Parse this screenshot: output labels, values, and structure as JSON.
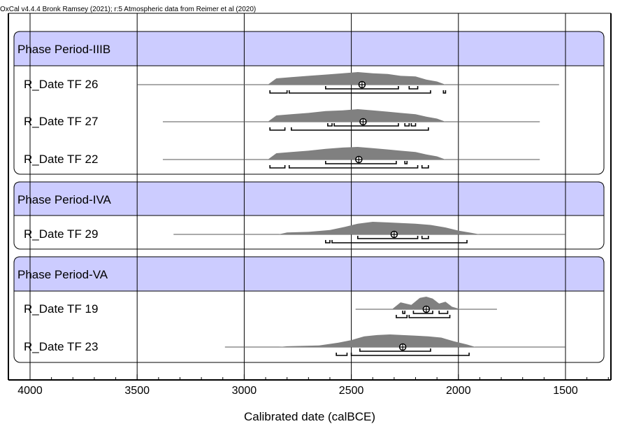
{
  "header": "OxCal v4.4.4 Bronk Ramsey (2021); r:5 Atmospheric data from Reimer et al (2020)",
  "chart_data": {
    "type": "radiocarbon-calibration-plot",
    "title": "",
    "xlabel": "Calibrated date (calBCE)",
    "xlim": [
      4100,
      1300
    ],
    "x_reversed": true,
    "x_ticks": [
      4000,
      3500,
      3000,
      2500,
      2000,
      1500
    ],
    "grid": true,
    "colors": {
      "phase_header": "#ccccff",
      "distribution": "#808080",
      "frame": "#000000",
      "grid": "#000000"
    },
    "phases": [
      {
        "name": "Phase Period-IIIB",
        "dates": [
          {
            "label": "R_Date TF 26",
            "tail": [
              3500,
              1530
            ],
            "marker": 2450,
            "range_68": [
              [
                2620,
                2280
              ],
              [
                2230,
                2190
              ]
            ],
            "range_95": [
              [
                2880,
                2800
              ],
              [
                2790,
                2130
              ],
              [
                2070,
                2060
              ]
            ],
            "peaks": [
              [
                2850,
                0.5
              ],
              [
                2780,
                0.6
              ],
              [
                2700,
                0.7
              ],
              [
                2620,
                0.8
              ],
              [
                2540,
                0.9
              ],
              [
                2470,
                1.0
              ],
              [
                2400,
                0.9
              ],
              [
                2330,
                0.85
              ],
              [
                2270,
                0.7
              ],
              [
                2200,
                0.65
              ],
              [
                2150,
                0.4
              ],
              [
                2100,
                0.25
              ]
            ]
          },
          {
            "label": "R_Date TF 27",
            "tail": [
              3380,
              1620
            ],
            "marker": 2445,
            "range_68": [
              [
                2610,
                2590
              ],
              [
                2580,
                2280
              ],
              [
                2250,
                2230
              ],
              [
                2220,
                2200
              ]
            ],
            "range_95": [
              [
                2880,
                2810
              ],
              [
                2780,
                2140
              ]
            ],
            "peaks": [
              [
                2850,
                0.5
              ],
              [
                2780,
                0.6
              ],
              [
                2700,
                0.7
              ],
              [
                2620,
                0.85
              ],
              [
                2540,
                0.9
              ],
              [
                2470,
                1.0
              ],
              [
                2400,
                0.9
              ],
              [
                2330,
                0.8
              ],
              [
                2270,
                0.7
              ],
              [
                2200,
                0.6
              ],
              [
                2150,
                0.4
              ],
              [
                2100,
                0.25
              ]
            ]
          },
          {
            "label": "R_Date TF 22",
            "tail": [
              3380,
              1620
            ],
            "marker": 2465,
            "range_68": [
              [
                2620,
                2290
              ],
              [
                2250,
                2240
              ]
            ],
            "range_95": [
              [
                2880,
                2810
              ],
              [
                2790,
                2190
              ],
              [
                2170,
                2140
              ]
            ],
            "peaks": [
              [
                2850,
                0.5
              ],
              [
                2780,
                0.6
              ],
              [
                2700,
                0.7
              ],
              [
                2620,
                0.85
              ],
              [
                2540,
                0.95
              ],
              [
                2470,
                1.0
              ],
              [
                2400,
                0.9
              ],
              [
                2330,
                0.8
              ],
              [
                2270,
                0.7
              ],
              [
                2200,
                0.6
              ],
              [
                2150,
                0.4
              ],
              [
                2100,
                0.25
              ]
            ]
          }
        ]
      },
      {
        "name": "Phase Period-IVA",
        "dates": [
          {
            "label": "R_Date TF 29",
            "tail": [
              3330,
              1500
            ],
            "marker": 2300,
            "range_68": [
              [
                2470,
                2190
              ],
              [
                2170,
                2140
              ]
            ],
            "range_95": [
              [
                2620,
                2600
              ],
              [
                2590,
                1960
              ]
            ],
            "peaks": [
              [
                2800,
                0.15
              ],
              [
                2700,
                0.2
              ],
              [
                2600,
                0.35
              ],
              [
                2530,
                0.6
              ],
              [
                2470,
                0.85
              ],
              [
                2400,
                1.0
              ],
              [
                2330,
                0.95
              ],
              [
                2270,
                0.9
              ],
              [
                2200,
                0.85
              ],
              [
                2130,
                0.75
              ],
              [
                2060,
                0.55
              ],
              [
                2000,
                0.3
              ],
              [
                1940,
                0.12
              ]
            ]
          }
        ]
      },
      {
        "name": "Phase Period-VA",
        "dates": [
          {
            "label": "R_Date TF 19",
            "tail": [
              2480,
              1820
            ],
            "marker": 2150,
            "range_68": [
              [
                2260,
                2250
              ],
              [
                2210,
                2120
              ],
              [
                2090,
                2050
              ]
            ],
            "range_95": [
              [
                2290,
                2240
              ],
              [
                2230,
                2040
              ]
            ],
            "peaks": [
              [
                2270,
                0.55
              ],
              [
                2220,
                0.35
              ],
              [
                2180,
                0.9
              ],
              [
                2150,
                1.0
              ],
              [
                2120,
                0.85
              ],
              [
                2090,
                0.45
              ],
              [
                2060,
                0.6
              ],
              [
                2030,
                0.2
              ]
            ]
          },
          {
            "label": "R_Date TF 23",
            "tail": [
              3090,
              1500
            ],
            "marker": 2260,
            "range_68": [
              [
                2460,
                2130
              ]
            ],
            "range_95": [
              [
                2570,
                2520
              ],
              [
                2500,
                1950
              ]
            ],
            "peaks": [
              [
                2800,
                0.06
              ],
              [
                2650,
                0.12
              ],
              [
                2560,
                0.35
              ],
              [
                2500,
                0.55
              ],
              [
                2440,
                0.85
              ],
              [
                2380,
                0.95
              ],
              [
                2320,
                1.0
              ],
              [
                2260,
                0.95
              ],
              [
                2200,
                0.9
              ],
              [
                2140,
                0.85
              ],
              [
                2080,
                0.75
              ],
              [
                2020,
                0.45
              ],
              [
                1960,
                0.2
              ]
            ]
          }
        ]
      }
    ]
  }
}
